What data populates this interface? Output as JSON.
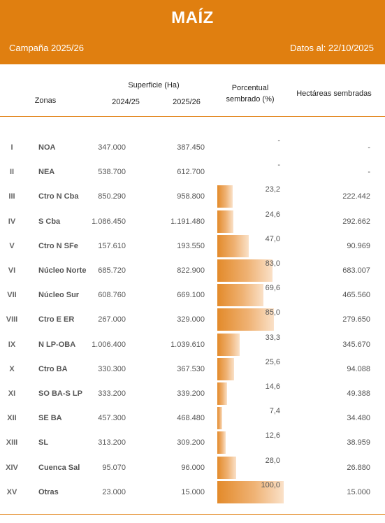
{
  "header": {
    "title": "MAÍZ",
    "campaign": "Campaña 2025/26",
    "date": "Datos al: 22/10/2025"
  },
  "columns": {
    "zonas": "Zonas",
    "superficie": "Superficie (Ha)",
    "year1": "2024/25",
    "year2": "2025/26",
    "porcentual_line1": "Porcentual",
    "porcentual_line2": "sembrado (%)",
    "hectareas": "Hectáreas sembradas"
  },
  "chart_data": {
    "type": "table",
    "bar_scale_max": 100,
    "rows": [
      {
        "num": "I",
        "zona": "NOA",
        "s2024": "347.000",
        "s2025": "387.450",
        "pct_label": "-",
        "pct": null,
        "hect": "-"
      },
      {
        "num": "II",
        "zona": "NEA",
        "s2024": "538.700",
        "s2025": "612.700",
        "pct_label": "-",
        "pct": null,
        "hect": "-"
      },
      {
        "num": "III",
        "zona": "Ctro N Cba",
        "s2024": "850.290",
        "s2025": "958.800",
        "pct_label": "23,2",
        "pct": 23.2,
        "hect": "222.442"
      },
      {
        "num": "IV",
        "zona": "S Cba",
        "s2024": "1.086.450",
        "s2025": "1.191.480",
        "pct_label": "24,6",
        "pct": 24.6,
        "hect": "292.662"
      },
      {
        "num": "V",
        "zona": "Ctro N SFe",
        "s2024": "157.610",
        "s2025": "193.550",
        "pct_label": "47,0",
        "pct": 47.0,
        "hect": "90.969"
      },
      {
        "num": "VI",
        "zona": "Núcleo Norte",
        "s2024": "685.720",
        "s2025": "822.900",
        "pct_label": "83,0",
        "pct": 83.0,
        "hect": "683.007"
      },
      {
        "num": "VII",
        "zona": "Núcleo Sur",
        "s2024": "608.760",
        "s2025": "669.100",
        "pct_label": "69,6",
        "pct": 69.6,
        "hect": "465.560"
      },
      {
        "num": "VIII",
        "zona": "Ctro E ER",
        "s2024": "267.000",
        "s2025": "329.000",
        "pct_label": "85,0",
        "pct": 85.0,
        "hect": "279.650"
      },
      {
        "num": "IX",
        "zona": "N LP-OBA",
        "s2024": "1.006.400",
        "s2025": "1.039.610",
        "pct_label": "33,3",
        "pct": 33.3,
        "hect": "345.670"
      },
      {
        "num": "X",
        "zona": "Ctro BA",
        "s2024": "330.300",
        "s2025": "367.530",
        "pct_label": "25,6",
        "pct": 25.6,
        "hect": "94.088"
      },
      {
        "num": "XI",
        "zona": "SO BA-S LP",
        "s2024": "333.200",
        "s2025": "339.200",
        "pct_label": "14,6",
        "pct": 14.6,
        "hect": "49.388"
      },
      {
        "num": "XII",
        "zona": "SE BA",
        "s2024": "457.300",
        "s2025": "468.480",
        "pct_label": "7,4",
        "pct": 7.4,
        "hect": "34.480"
      },
      {
        "num": "XIII",
        "zona": "SL",
        "s2024": "313.200",
        "s2025": "309.200",
        "pct_label": "12,6",
        "pct": 12.6,
        "hect": "38.959"
      },
      {
        "num": "XIV",
        "zona": "Cuenca Sal",
        "s2024": "95.070",
        "s2025": "96.000",
        "pct_label": "28,0",
        "pct": 28.0,
        "hect": "26.880"
      },
      {
        "num": "XV",
        "zona": "Otras",
        "s2024": "23.000",
        "s2025": "15.000",
        "pct_label": "100,0",
        "pct": 100.0,
        "hect": "15.000"
      }
    ]
  }
}
